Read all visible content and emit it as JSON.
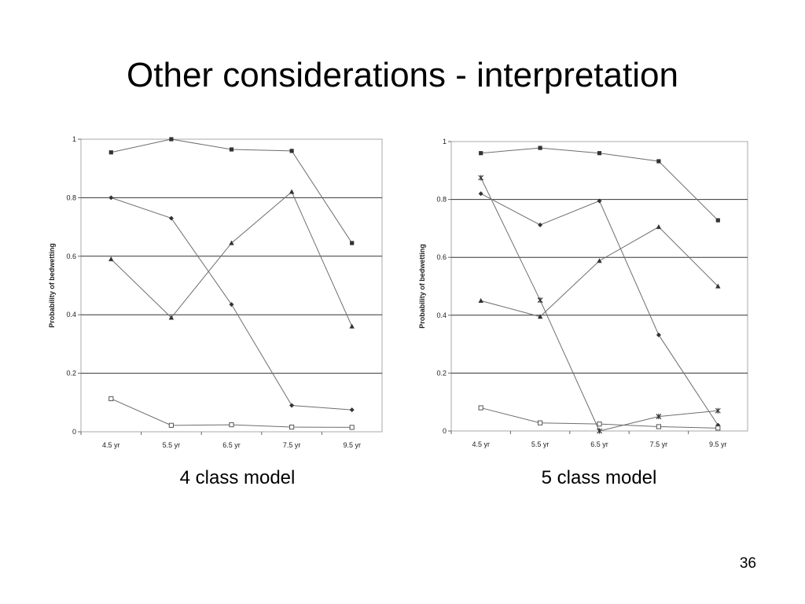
{
  "slide": {
    "title": "Other considerations - interpretation",
    "page_number": "36"
  },
  "captions": [
    "4 class model",
    "5 class model"
  ],
  "chart_data": [
    {
      "type": "line",
      "title": "",
      "caption": "4 class model",
      "xlabel": "",
      "ylabel": "Probability of bedwetting",
      "categories": [
        "4.5 yr",
        "5.5 yr",
        "6.5 yr",
        "7.5 yr",
        "9.5 yr"
      ],
      "ylim": [
        0,
        1
      ],
      "yticks": [
        "0",
        "0.2",
        "0.4",
        "0.6",
        "0.8",
        "1"
      ],
      "grid": "horizontal",
      "legend": "none",
      "series": [
        {
          "marker": "square",
          "values": [
            0.955,
            1.0,
            0.965,
            0.96,
            0.645
          ]
        },
        {
          "marker": "diamond",
          "values": [
            0.8,
            0.73,
            0.435,
            0.09,
            0.075
          ]
        },
        {
          "marker": "triangle",
          "values": [
            0.59,
            0.39,
            0.645,
            0.82,
            0.36
          ]
        },
        {
          "marker": "open-square",
          "values": [
            0.113,
            0.022,
            0.024,
            0.016,
            0.015
          ]
        }
      ]
    },
    {
      "type": "line",
      "title": "",
      "caption": "5 class model",
      "xlabel": "",
      "ylabel": "Probability of bedwetting",
      "categories": [
        "4.5 yr",
        "5.5 yr",
        "6.5 yr",
        "7.5 yr",
        "9.5 yr"
      ],
      "ylim": [
        0,
        1
      ],
      "yticks": [
        "0",
        "0.2",
        "0.4",
        "0.6",
        "0.8",
        "1"
      ],
      "grid": "horizontal",
      "legend": "none",
      "series": [
        {
          "marker": "square",
          "values": [
            0.96,
            0.978,
            0.96,
            0.932,
            0.728
          ]
        },
        {
          "marker": "diamond",
          "values": [
            0.82,
            0.712,
            0.795,
            0.332,
            0.02
          ]
        },
        {
          "marker": "triangle",
          "values": [
            0.45,
            0.395,
            0.588,
            0.705,
            0.5
          ]
        },
        {
          "marker": "star",
          "values": [
            0.875,
            0.452,
            0.0,
            0.05,
            0.07
          ]
        },
        {
          "marker": "open-square",
          "values": [
            0.08,
            0.028,
            0.024,
            0.015,
            0.01
          ]
        }
      ]
    }
  ]
}
